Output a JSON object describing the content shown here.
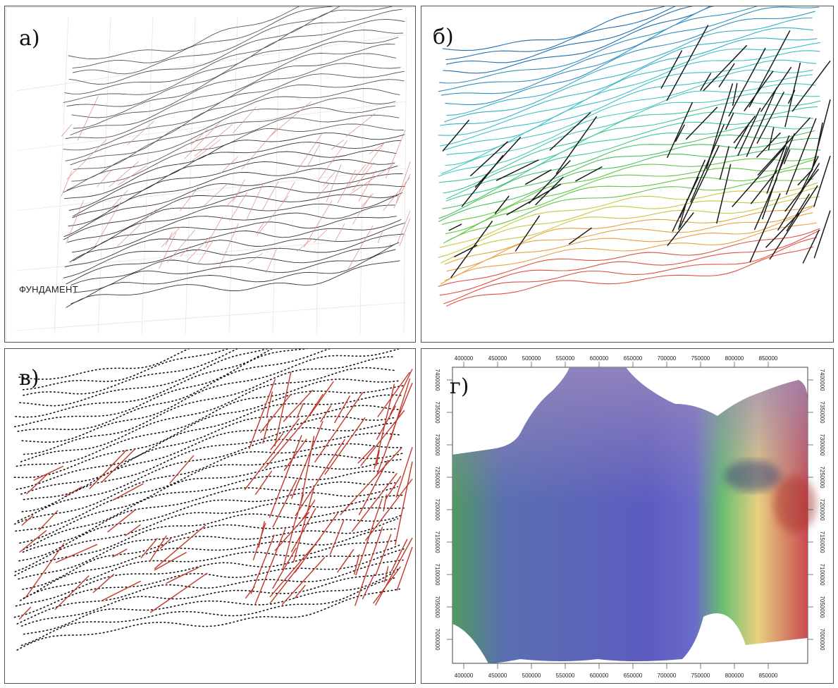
{
  "panels": {
    "a": {
      "label": "а)",
      "caption": "ФУНДАМЕНТ"
    },
    "b": {
      "label": "б)"
    },
    "c": {
      "label": "в)"
    },
    "d": {
      "label": "г)"
    }
  },
  "map_axes": {
    "x_ticks": [
      "400000",
      "450000",
      "500000",
      "550000",
      "600000",
      "650000",
      "700000",
      "750000",
      "800000",
      "850000"
    ],
    "y_ticks": [
      "7400000",
      "7350000",
      "7300000",
      "7250000",
      "7200000",
      "7150000",
      "7100000",
      "7050000",
      "7000000"
    ]
  },
  "colors": {
    "contour_dark": "#333333",
    "fault_red": "#c0392b",
    "fault_black": "#111111",
    "surface_blue": "#5a5ab8",
    "surface_purple": "#8a7fb8",
    "surface_green": "#4caf50",
    "surface_red": "#c84a4a"
  }
}
